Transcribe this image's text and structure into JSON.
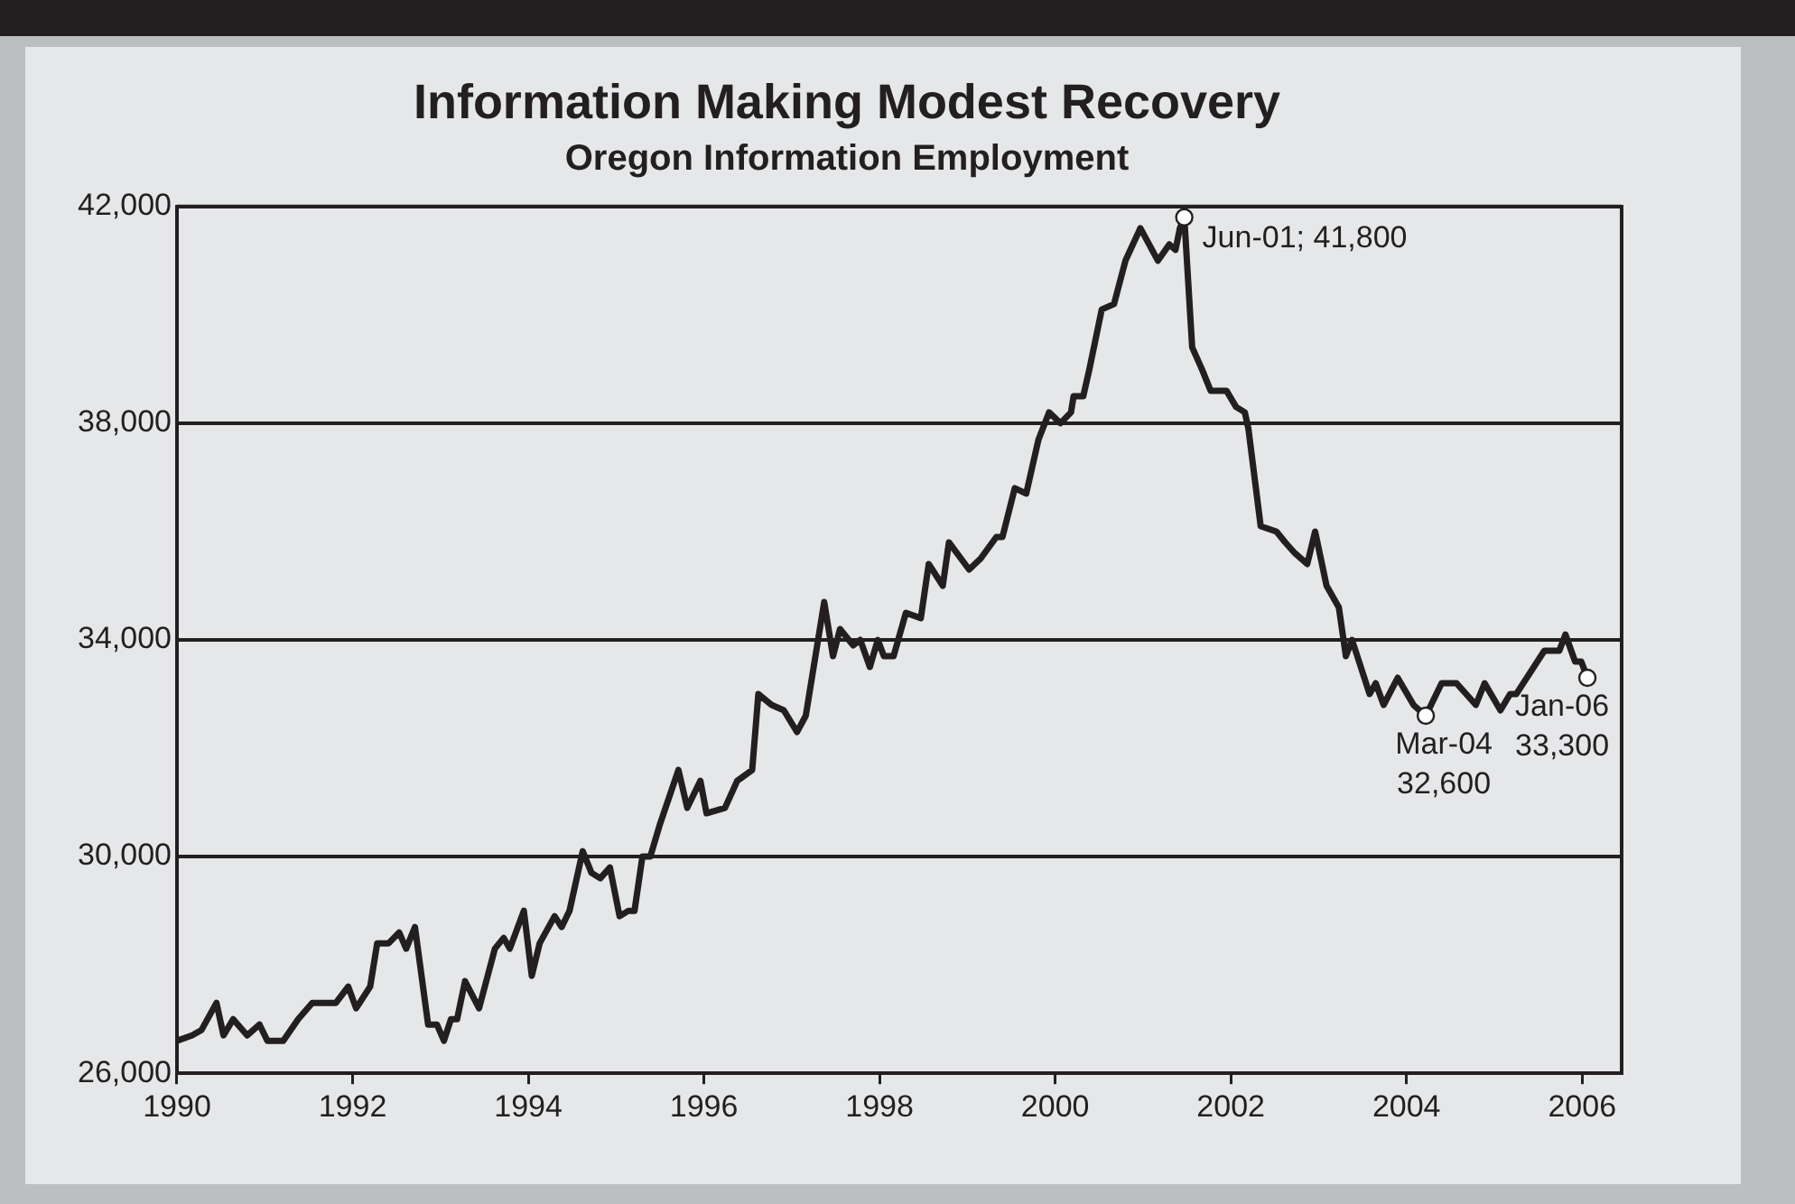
{
  "chart_data": {
    "type": "line",
    "title": "Information Making Modest Recovery",
    "subtitle": "Oregon Information Employment",
    "xlim": [
      1990,
      2006.45
    ],
    "xticks": [
      1990,
      1992,
      1994,
      1996,
      1998,
      2000,
      2002,
      2004,
      2006
    ],
    "ylim": [
      26000,
      42000
    ],
    "yticks": [
      {
        "value": 26000,
        "label": "26,000"
      },
      {
        "value": 30000,
        "label": "30,000"
      },
      {
        "value": 34000,
        "label": "34,000"
      },
      {
        "value": 38000,
        "label": "38,000"
      },
      {
        "value": 42000,
        "label": "42,000"
      }
    ],
    "grid": "y",
    "legend": false,
    "marker": "none",
    "line_style": "solid",
    "series": [
      {
        "color": "#231f20",
        "x": [
          1990.0,
          1990.17,
          1990.28,
          1990.45,
          1990.53,
          1990.64,
          1990.8,
          1990.94,
          1991.03,
          1991.21,
          1991.38,
          1991.54,
          1991.81,
          1991.95,
          1992.04,
          1992.2,
          1992.28,
          1992.41,
          1992.53,
          1992.61,
          1992.71,
          1992.86,
          1992.96,
          1993.04,
          1993.12,
          1993.19,
          1993.28,
          1993.44,
          1993.62,
          1993.72,
          1993.79,
          1993.95,
          1994.04,
          1994.13,
          1994.3,
          1994.38,
          1994.47,
          1994.62,
          1994.72,
          1994.82,
          1994.93,
          1995.04,
          1995.14,
          1995.21,
          1995.3,
          1995.39,
          1995.5,
          1995.71,
          1995.81,
          1995.96,
          1996.03,
          1996.24,
          1996.38,
          1996.55,
          1996.62,
          1996.77,
          1996.91,
          1997.06,
          1997.16,
          1997.37,
          1997.47,
          1997.55,
          1997.7,
          1997.78,
          1997.89,
          1997.98,
          1998.05,
          1998.16,
          1998.3,
          1998.47,
          1998.56,
          1998.72,
          1998.79,
          1999.02,
          1999.15,
          1999.33,
          1999.4,
          1999.54,
          1999.67,
          1999.81,
          1999.93,
          2000.06,
          2000.18,
          2000.21,
          2000.32,
          2000.39,
          2000.53,
          2000.67,
          2000.8,
          2000.97,
          2001.17,
          2001.3,
          2001.37,
          2001.42,
          2001.47,
          2001.56,
          2001.67,
          2001.77,
          2001.95,
          2002.06,
          2002.16,
          2002.2,
          2002.34,
          2002.52,
          2002.62,
          2002.73,
          2002.87,
          2002.96,
          2003.09,
          2003.23,
          2003.31,
          2003.38,
          2003.58,
          2003.65,
          2003.74,
          2003.9,
          2004.08,
          2004.22,
          2004.4,
          2004.57,
          2004.79,
          2004.89,
          2005.07,
          2005.18,
          2005.25,
          2005.57,
          2005.74,
          2005.81,
          2005.92,
          2005.99,
          2006.06
        ],
        "values": [
          26600,
          26700,
          26800,
          27300,
          26700,
          27000,
          26700,
          26900,
          26600,
          26600,
          27000,
          27300,
          27300,
          27600,
          27200,
          27600,
          28400,
          28400,
          28600,
          28300,
          28700,
          26900,
          26900,
          26600,
          27000,
          27000,
          27700,
          27200,
          28300,
          28500,
          28300,
          29000,
          27800,
          28400,
          28900,
          28700,
          29000,
          30100,
          29700,
          29600,
          29800,
          28900,
          29000,
          29000,
          30000,
          30000,
          30600,
          31600,
          30900,
          31400,
          30800,
          30900,
          31400,
          31600,
          33000,
          32800,
          32700,
          32300,
          32600,
          34700,
          33700,
          34200,
          33900,
          34000,
          33500,
          34000,
          33700,
          33700,
          34500,
          34400,
          35400,
          35000,
          35800,
          35300,
          35500,
          35900,
          35900,
          36800,
          36700,
          37700,
          38200,
          38000,
          38200,
          38500,
          38500,
          39000,
          40100,
          40200,
          41000,
          41600,
          41000,
          41300,
          41200,
          41600,
          41800,
          39400,
          39000,
          38600,
          38600,
          38300,
          38200,
          37900,
          36100,
          36000,
          35800,
          35600,
          35400,
          36000,
          35000,
          34600,
          33700,
          34000,
          33000,
          33200,
          32800,
          33300,
          32800,
          32600,
          33200,
          33200,
          32800,
          33200,
          32700,
          33000,
          33000,
          33800,
          33800,
          34100,
          33600,
          33600,
          33300
        ]
      }
    ],
    "annotations": [
      {
        "text": "Jun-01; 41,800",
        "x": 2001.47,
        "y": 41800
      },
      {
        "text": "Mar-04\n32,600",
        "x": 2004.22,
        "y": 32600
      },
      {
        "text": "Jan-06\n33,300",
        "x": 2006.06,
        "y": 33300
      }
    ]
  }
}
